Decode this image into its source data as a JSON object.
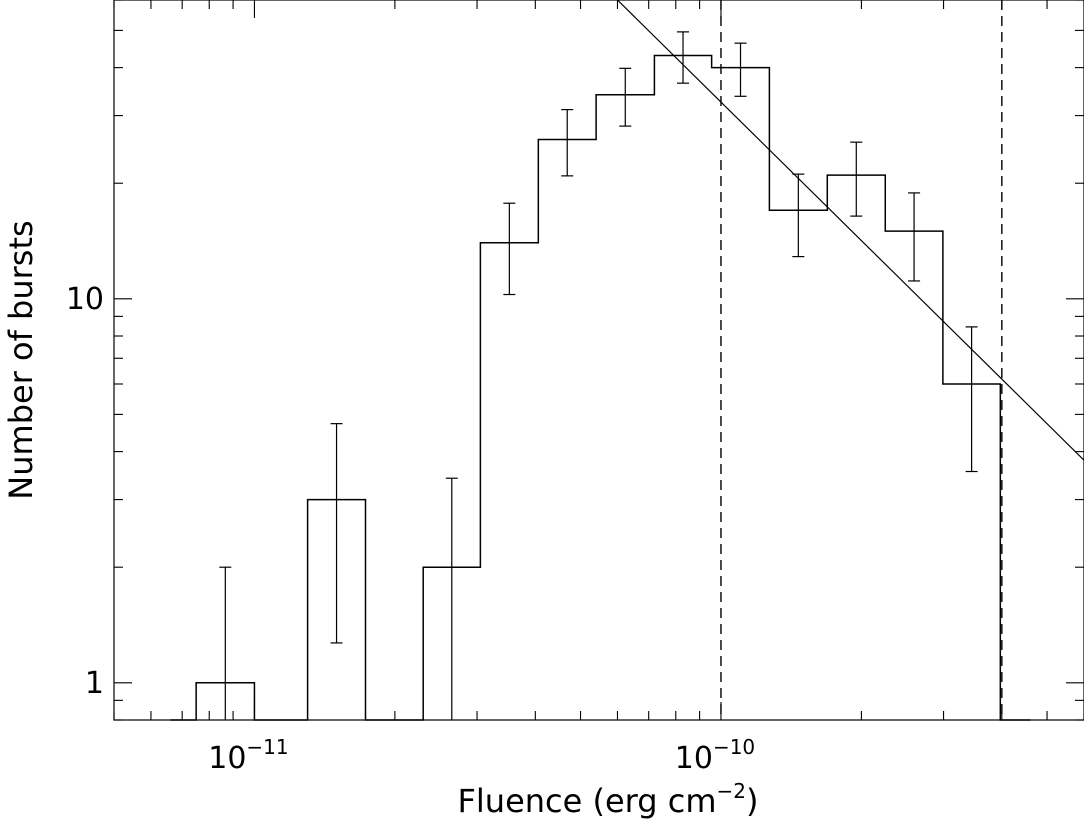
{
  "chart_data": {
    "type": "histogram",
    "xlabel": "Fluence (erg cm",
    "xlabel_exponent": "−2",
    "xlabel_suffix": ")",
    "ylabel": "Number of bursts",
    "x_scale": "log",
    "y_scale": "log",
    "xlim": [
      5e-12,
      6e-10
    ],
    "ylim": [
      0.8,
      60
    ],
    "x_tick_labels": [
      {
        "value": 1e-11,
        "base": "10",
        "exponent": "−11"
      },
      {
        "value": 1e-10,
        "base": "10",
        "exponent": "−10"
      }
    ],
    "y_tick_labels": [
      {
        "value": 1,
        "text": "1"
      },
      {
        "value": 10,
        "text": "10"
      }
    ],
    "bins": [
      {
        "x0": 6.6e-12,
        "x1": 7.5e-12,
        "count": 0
      },
      {
        "x0": 7.5e-12,
        "x1": 1e-11,
        "count": 1,
        "err_lo": 0,
        "err_hi": 2
      },
      {
        "x0": 1e-11,
        "x1": 1.3e-11,
        "count": 0
      },
      {
        "x0": 1.3e-11,
        "x1": 1.73e-11,
        "count": 3,
        "err_lo": 1.27,
        "err_hi": 4.73
      },
      {
        "x0": 1.73e-11,
        "x1": 2.3e-11,
        "count": 0
      },
      {
        "x0": 2.3e-11,
        "x1": 3.05e-11,
        "count": 2,
        "err_lo": 0,
        "err_hi": 3.41
      },
      {
        "x0": 3.05e-11,
        "x1": 4.06e-11,
        "count": 14,
        "err_lo": 10.26,
        "err_hi": 17.74
      },
      {
        "x0": 4.06e-11,
        "x1": 5.4e-11,
        "count": 26,
        "err_lo": 20.9,
        "err_hi": 31.1
      },
      {
        "x0": 5.4e-11,
        "x1": 7.2e-11,
        "count": 34,
        "err_lo": 28.17,
        "err_hi": 39.83
      },
      {
        "x0": 7.2e-11,
        "x1": 9.55e-11,
        "count": 43,
        "err_lo": 36.44,
        "err_hi": 49.56
      },
      {
        "x0": 9.55e-11,
        "x1": 1.27e-10,
        "count": 40,
        "err_lo": 33.68,
        "err_hi": 46.32
      },
      {
        "x0": 1.27e-10,
        "x1": 1.69e-10,
        "count": 17,
        "err_lo": 12.88,
        "err_hi": 21.12
      },
      {
        "x0": 1.69e-10,
        "x1": 2.25e-10,
        "count": 21,
        "err_lo": 16.42,
        "err_hi": 25.58
      },
      {
        "x0": 2.25e-10,
        "x1": 2.99e-10,
        "count": 15,
        "err_lo": 11.13,
        "err_hi": 18.87
      },
      {
        "x0": 2.99e-10,
        "x1": 3.97e-10,
        "count": 6,
        "err_lo": 3.55,
        "err_hi": 8.45
      },
      {
        "x0": 3.97e-10,
        "x1": 4.6e-10,
        "count": 0
      }
    ],
    "fit_line": {
      "x": [
        6e-11,
        6e-10
      ],
      "y": [
        60.0,
        3.8
      ]
    },
    "vertical_lines": [
      1e-10,
      4e-10
    ]
  }
}
